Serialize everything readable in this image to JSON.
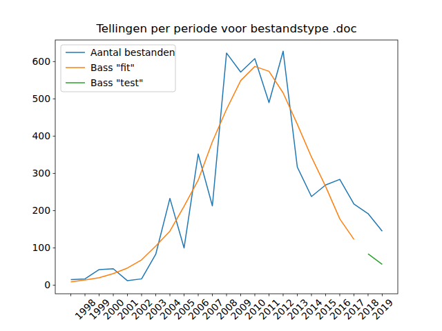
{
  "chart_data": {
    "type": "line",
    "title": "Tellingen per periode voor bestandstype .doc",
    "categories": [
      null,
      "1998",
      "1999",
      "2000",
      "2001",
      "2002",
      "2003",
      "2004",
      "2005",
      "2006",
      "2007",
      "2008",
      "2009",
      "2010",
      "2011",
      "2012",
      "2013",
      "2014",
      "2015",
      "2016",
      "2017",
      "2018",
      "2019"
    ],
    "series": [
      {
        "name": "Aantal bestanden",
        "color": "#1f77b4",
        "values": [
          15,
          17,
          42,
          44,
          12,
          17,
          83,
          233,
          100,
          352,
          213,
          623,
          572,
          608,
          490,
          628,
          317,
          238,
          269,
          284,
          218,
          192,
          145
        ]
      },
      {
        "name": "Bass \"fit\"",
        "color": "#ff7f0e",
        "values": [
          9,
          14,
          20,
          31,
          46,
          68,
          105,
          145,
          212,
          282,
          385,
          472,
          549,
          587,
          574,
          516,
          432,
          344,
          265,
          178,
          123,
          null,
          null
        ]
      },
      {
        "name": "Bass \"test\"",
        "color": "#2ca02c",
        "values": [
          null,
          null,
          null,
          null,
          null,
          null,
          null,
          null,
          null,
          null,
          null,
          null,
          null,
          null,
          null,
          null,
          null,
          null,
          null,
          null,
          null,
          84,
          56
        ]
      }
    ],
    "ylim": [
      -23,
      658
    ],
    "yticks": [
      0,
      100,
      200,
      300,
      400,
      500,
      600
    ],
    "grid": false,
    "legend": "upper left"
  }
}
